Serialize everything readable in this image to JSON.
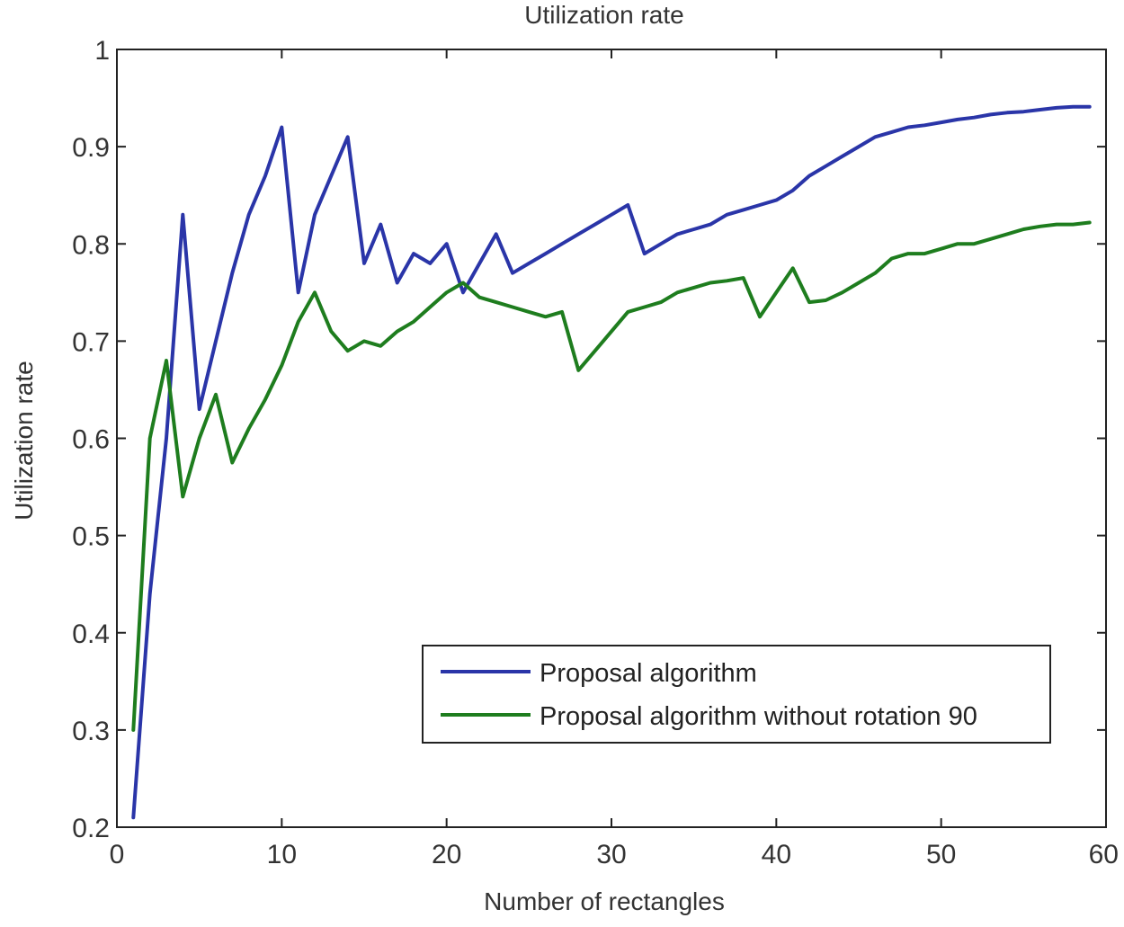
{
  "chart_data": {
    "type": "line",
    "title": "Utilization rate",
    "xlabel": "Number of rectangles",
    "ylabel": "Utilization rate",
    "xlim": [
      0,
      60
    ],
    "ylim": [
      0.2,
      1
    ],
    "xticks": [
      0,
      10,
      20,
      30,
      40,
      50,
      60
    ],
    "xtick_labels": [
      "0",
      "10",
      "20",
      "30",
      "40",
      "50",
      "60"
    ],
    "yticks": [
      0.2,
      0.3,
      0.4,
      0.5,
      0.6,
      0.7,
      0.8,
      0.9,
      1
    ],
    "ytick_labels": [
      "0.2",
      "0.3",
      "0.4",
      "0.5",
      "0.6",
      "0.7",
      "0.8",
      "0.9",
      "1"
    ],
    "grid": false,
    "legend_position": "lower-right",
    "series": [
      {
        "name": "Proposal algorithm",
        "color": "#2a35a8",
        "x": [
          1,
          2,
          3,
          4,
          5,
          6,
          7,
          8,
          9,
          10,
          11,
          12,
          13,
          14,
          15,
          16,
          17,
          18,
          19,
          20,
          21,
          22,
          23,
          24,
          25,
          26,
          27,
          28,
          29,
          30,
          31,
          32,
          33,
          34,
          35,
          36,
          37,
          38,
          39,
          40,
          41,
          42,
          43,
          44,
          45,
          46,
          47,
          48,
          49,
          50,
          51,
          52,
          53,
          54,
          55,
          56,
          57,
          58,
          59
        ],
        "values": [
          0.21,
          0.44,
          0.6,
          0.83,
          0.63,
          0.7,
          0.77,
          0.83,
          0.87,
          0.92,
          0.75,
          0.83,
          0.87,
          0.91,
          0.78,
          0.82,
          0.76,
          0.79,
          0.78,
          0.8,
          0.75,
          0.78,
          0.81,
          0.77,
          0.78,
          0.79,
          0.8,
          0.81,
          0.82,
          0.83,
          0.84,
          0.79,
          0.8,
          0.81,
          0.815,
          0.82,
          0.83,
          0.835,
          0.84,
          0.845,
          0.855,
          0.87,
          0.88,
          0.89,
          0.9,
          0.91,
          0.915,
          0.92,
          0.922,
          0.925,
          0.928,
          0.93,
          0.933,
          0.935,
          0.936,
          0.938,
          0.94,
          0.941,
          0.941
        ]
      },
      {
        "name": "Proposal algorithm without rotation 90",
        "color": "#1e7d1e",
        "x": [
          1,
          2,
          3,
          4,
          5,
          6,
          7,
          8,
          9,
          10,
          11,
          12,
          13,
          14,
          15,
          16,
          17,
          18,
          19,
          20,
          21,
          22,
          23,
          24,
          25,
          26,
          27,
          28,
          29,
          30,
          31,
          32,
          33,
          34,
          35,
          36,
          37,
          38,
          39,
          40,
          41,
          42,
          43,
          44,
          45,
          46,
          47,
          48,
          49,
          50,
          51,
          52,
          53,
          54,
          55,
          56,
          57,
          58,
          59
        ],
        "values": [
          0.3,
          0.6,
          0.68,
          0.54,
          0.6,
          0.645,
          0.575,
          0.61,
          0.64,
          0.675,
          0.72,
          0.75,
          0.71,
          0.69,
          0.7,
          0.695,
          0.71,
          0.72,
          0.735,
          0.75,
          0.76,
          0.745,
          0.74,
          0.735,
          0.73,
          0.725,
          0.73,
          0.67,
          0.69,
          0.71,
          0.73,
          0.735,
          0.74,
          0.75,
          0.755,
          0.76,
          0.762,
          0.765,
          0.725,
          0.75,
          0.775,
          0.74,
          0.742,
          0.75,
          0.76,
          0.77,
          0.785,
          0.79,
          0.79,
          0.795,
          0.8,
          0.8,
          0.805,
          0.81,
          0.815,
          0.818,
          0.82,
          0.82,
          0.822
        ]
      }
    ]
  }
}
